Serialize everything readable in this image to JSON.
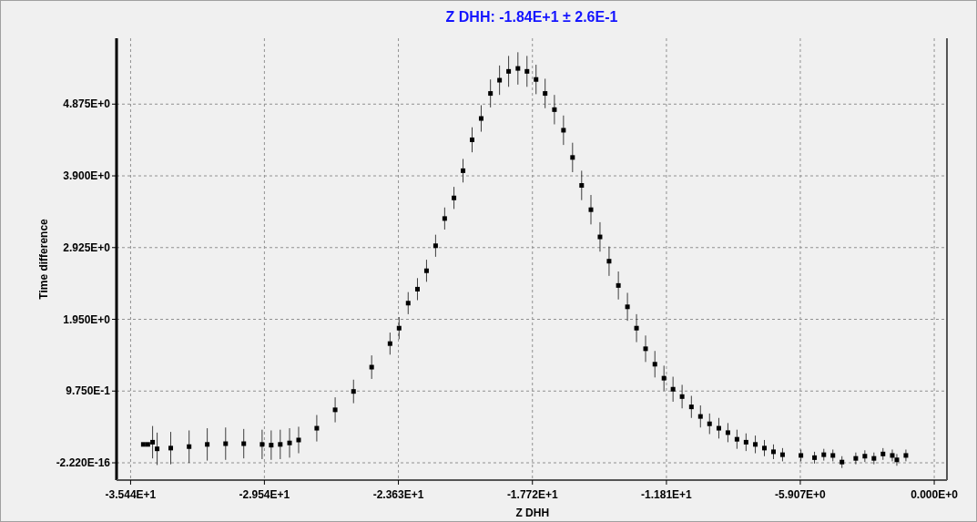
{
  "chart_data": {
    "type": "scatter",
    "title": "Z DHH: -1.84E+1 ± 2.6E-1",
    "xlabel": "Z DHH",
    "ylabel": "Time difference",
    "xlim": [
      -36.06,
      0.56
    ],
    "ylim": [
      -0.235,
      5.77
    ],
    "xticks": [
      {
        "value": -35.44,
        "label": "-3.544E+1"
      },
      {
        "value": -29.54,
        "label": "-2.954E+1"
      },
      {
        "value": -23.63,
        "label": "-2.363E+1"
      },
      {
        "value": -17.72,
        "label": "-1.772E+1"
      },
      {
        "value": -11.81,
        "label": "-1.181E+1"
      },
      {
        "value": -5.907,
        "label": "-5.907E+0"
      },
      {
        "value": 0,
        "label": "0.000E+0"
      }
    ],
    "yticks": [
      {
        "value": -2.22e-16,
        "label": "-2.220E-16"
      },
      {
        "value": 0.975,
        "label": "9.750E-1"
      },
      {
        "value": 1.95,
        "label": "1.950E+0"
      },
      {
        "value": 2.925,
        "label": "2.925E+0"
      },
      {
        "value": 3.9,
        "label": "3.900E+0"
      },
      {
        "value": 4.875,
        "label": "4.875E+0"
      }
    ],
    "grid": true,
    "marker": "square",
    "series": [
      {
        "color": "#000000",
        "x": [
          -34.88,
          -34.68,
          -34.47,
          -34.27,
          -33.67,
          -32.86,
          -32.06,
          -31.25,
          -30.45,
          -29.64,
          -29.24,
          -28.84,
          -28.43,
          -28.03,
          -27.23,
          -26.42,
          -25.61,
          -24.81,
          -24.0,
          -23.6,
          -23.2,
          -22.79,
          -22.39,
          -21.99,
          -21.59,
          -21.18,
          -20.78,
          -20.38,
          -19.98,
          -19.57,
          -19.17,
          -18.77,
          -18.36,
          -17.96,
          -17.56,
          -17.16,
          -16.75,
          -16.35,
          -15.95,
          -15.55,
          -15.14,
          -14.74,
          -14.34,
          -13.93,
          -13.53,
          -13.13,
          -12.73,
          -12.32,
          -11.92,
          -11.52,
          -11.12,
          -10.71,
          -10.31,
          -9.91,
          -9.5,
          -9.1,
          -8.7,
          -8.3,
          -7.89,
          -7.49,
          -7.09,
          -6.69,
          -5.88,
          -5.28,
          -4.87,
          -4.47,
          -4.07,
          -3.46,
          -3.06,
          -2.66,
          -2.26,
          -1.85,
          -1.65,
          -1.25
        ],
        "values": [
          0.25,
          0.25,
          0.28,
          0.19,
          0.2,
          0.22,
          0.25,
          0.26,
          0.26,
          0.25,
          0.24,
          0.25,
          0.27,
          0.31,
          0.47,
          0.72,
          0.97,
          1.3,
          1.62,
          1.83,
          2.17,
          2.36,
          2.61,
          2.95,
          3.32,
          3.6,
          3.97,
          4.39,
          4.68,
          5.02,
          5.2,
          5.32,
          5.36,
          5.32,
          5.21,
          5.02,
          4.8,
          4.52,
          4.15,
          3.77,
          3.44,
          3.07,
          2.74,
          2.41,
          2.12,
          1.83,
          1.55,
          1.34,
          1.15,
          1.0,
          0.9,
          0.76,
          0.63,
          0.53,
          0.47,
          0.41,
          0.32,
          0.28,
          0.25,
          0.2,
          0.15,
          0.11,
          0.1,
          0.07,
          0.11,
          0.1,
          0.01,
          0.06,
          0.09,
          0.06,
          0.12,
          0.1,
          0.04,
          0.1
        ],
        "errors": [
          null,
          null,
          0.22,
          0.22,
          0.22,
          0.22,
          0.22,
          0.22,
          0.2,
          0.2,
          0.2,
          0.2,
          0.2,
          0.18,
          0.18,
          0.17,
          0.16,
          0.16,
          0.15,
          0.15,
          0.15,
          0.15,
          0.15,
          0.15,
          0.15,
          0.15,
          0.16,
          0.17,
          0.18,
          0.19,
          0.2,
          0.21,
          0.22,
          0.21,
          0.2,
          0.2,
          0.2,
          0.2,
          0.2,
          0.2,
          0.2,
          0.2,
          0.2,
          0.19,
          0.19,
          0.19,
          0.18,
          0.18,
          0.17,
          0.17,
          0.16,
          0.15,
          0.15,
          0.14,
          0.14,
          0.13,
          0.13,
          0.12,
          0.12,
          0.11,
          0.1,
          0.09,
          0.08,
          0.08,
          0.08,
          0.08,
          0.08,
          0.08,
          0.08,
          0.08,
          0.08,
          0.08,
          0.08,
          0.08
        ]
      }
    ]
  }
}
